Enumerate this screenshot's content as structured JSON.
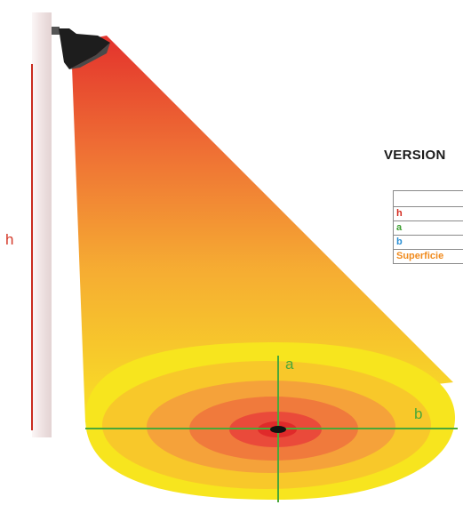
{
  "diagram": {
    "height_label": "h",
    "axis_a_label": "a",
    "axis_b_label": "b"
  },
  "panel": {
    "title": "VERSION",
    "rows": [
      {
        "label": "",
        "color": "#000000"
      },
      {
        "label": "h",
        "color": "#d42a1e"
      },
      {
        "label": "a",
        "color": "#3a9e2e"
      },
      {
        "label": "b",
        "color": "#2a8fd4"
      },
      {
        "label": "Superficie",
        "color": "#f08a1c"
      }
    ]
  },
  "colors": {
    "beam_top": "#e8322a",
    "beam_mid": "#f08a2c",
    "beam_bottom": "#f7e21a",
    "axis_line": "#4aa838",
    "height_line": "#c92a1e",
    "pole": "#f3eaea"
  }
}
